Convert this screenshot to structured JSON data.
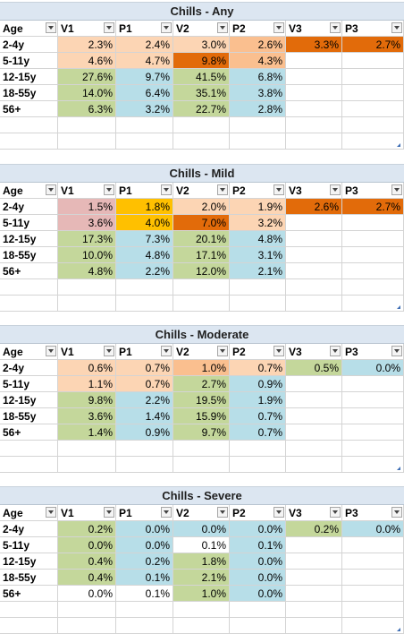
{
  "colors": {
    "peach": "#fcd5b4",
    "light_orange": "#fabf8f",
    "orange": "#e26b0a",
    "dark_orange": "#e46c0a",
    "green": "#c4d79b",
    "blue": "#b7dee8",
    "pink": "#e6b8b7",
    "yellow": "#ffc000",
    "white": "#ffffff",
    "header_bg": "#dce6f1"
  },
  "headers": [
    "Age",
    "V1",
    "P1",
    "V2",
    "P2",
    "V3",
    "P3"
  ],
  "sections": [
    {
      "title": "Chills - Any",
      "rows": [
        {
          "age": "2-4y",
          "values": [
            "2.3%",
            "2.4%",
            "3.0%",
            "2.6%",
            "3.3%",
            "2.7%"
          ],
          "colors": [
            "peach",
            "peach",
            "peach",
            "light_orange",
            "orange",
            "orange"
          ]
        },
        {
          "age": "5-11y",
          "values": [
            "4.6%",
            "4.7%",
            "9.8%",
            "4.3%",
            "",
            ""
          ],
          "colors": [
            "peach",
            "peach",
            "orange",
            "light_orange",
            "white",
            "white"
          ]
        },
        {
          "age": "12-15y",
          "values": [
            "27.6%",
            "9.7%",
            "41.5%",
            "6.8%",
            "",
            ""
          ],
          "colors": [
            "green",
            "blue",
            "green",
            "blue",
            "white",
            "white"
          ]
        },
        {
          "age": "18-55y",
          "values": [
            "14.0%",
            "6.4%",
            "35.1%",
            "3.8%",
            "",
            ""
          ],
          "colors": [
            "green",
            "blue",
            "green",
            "blue",
            "white",
            "white"
          ]
        },
        {
          "age": "56+",
          "values": [
            "6.3%",
            "3.2%",
            "22.7%",
            "2.8%",
            "",
            ""
          ],
          "colors": [
            "green",
            "blue",
            "green",
            "blue",
            "white",
            "white"
          ]
        }
      ]
    },
    {
      "title": "Chills - Mild",
      "rows": [
        {
          "age": "2-4y",
          "values": [
            "1.5%",
            "1.8%",
            "2.0%",
            "1.9%",
            "2.6%",
            "2.7%"
          ],
          "colors": [
            "pink",
            "yellow",
            "peach",
            "peach",
            "orange",
            "orange"
          ]
        },
        {
          "age": "5-11y",
          "values": [
            "3.6%",
            "4.0%",
            "7.0%",
            "3.2%",
            "",
            ""
          ],
          "colors": [
            "pink",
            "yellow",
            "orange",
            "peach",
            "white",
            "white"
          ]
        },
        {
          "age": "12-15y",
          "values": [
            "17.3%",
            "7.3%",
            "20.1%",
            "4.8%",
            "",
            ""
          ],
          "colors": [
            "green",
            "blue",
            "green",
            "blue",
            "white",
            "white"
          ]
        },
        {
          "age": "18-55y",
          "values": [
            "10.0%",
            "4.8%",
            "17.1%",
            "3.1%",
            "",
            ""
          ],
          "colors": [
            "green",
            "blue",
            "green",
            "blue",
            "white",
            "white"
          ]
        },
        {
          "age": "56+",
          "values": [
            "4.8%",
            "2.2%",
            "12.0%",
            "2.1%",
            "",
            ""
          ],
          "colors": [
            "green",
            "blue",
            "green",
            "blue",
            "white",
            "white"
          ]
        }
      ]
    },
    {
      "title": "Chills - Moderate",
      "rows": [
        {
          "age": "2-4y",
          "values": [
            "0.6%",
            "0.7%",
            "1.0%",
            "0.7%",
            "0.5%",
            "0.0%"
          ],
          "colors": [
            "peach",
            "peach",
            "light_orange",
            "peach",
            "green",
            "blue"
          ]
        },
        {
          "age": "5-11y",
          "values": [
            "1.1%",
            "0.7%",
            "2.7%",
            "0.9%",
            "",
            ""
          ],
          "colors": [
            "peach",
            "peach",
            "green",
            "blue",
            "white",
            "white"
          ]
        },
        {
          "age": "12-15y",
          "values": [
            "9.8%",
            "2.2%",
            "19.5%",
            "1.9%",
            "",
            ""
          ],
          "colors": [
            "green",
            "blue",
            "green",
            "blue",
            "white",
            "white"
          ]
        },
        {
          "age": "18-55y",
          "values": [
            "3.6%",
            "1.4%",
            "15.9%",
            "0.7%",
            "",
            ""
          ],
          "colors": [
            "green",
            "blue",
            "green",
            "blue",
            "white",
            "white"
          ]
        },
        {
          "age": "56+",
          "values": [
            "1.4%",
            "0.9%",
            "9.7%",
            "0.7%",
            "",
            ""
          ],
          "colors": [
            "green",
            "blue",
            "green",
            "blue",
            "white",
            "white"
          ]
        }
      ]
    },
    {
      "title": "Chills - Severe",
      "rows": [
        {
          "age": "2-4y",
          "values": [
            "0.2%",
            "0.0%",
            "0.0%",
            "0.0%",
            "0.2%",
            "0.0%"
          ],
          "colors": [
            "green",
            "blue",
            "blue",
            "blue",
            "green",
            "blue"
          ]
        },
        {
          "age": "5-11y",
          "values": [
            "0.0%",
            "0.0%",
            "0.1%",
            "0.1%",
            "",
            ""
          ],
          "colors": [
            "green",
            "blue",
            "white",
            "blue",
            "white",
            "white"
          ]
        },
        {
          "age": "12-15y",
          "values": [
            "0.4%",
            "0.2%",
            "1.8%",
            "0.0%",
            "",
            ""
          ],
          "colors": [
            "green",
            "blue",
            "green",
            "blue",
            "white",
            "white"
          ]
        },
        {
          "age": "18-55y",
          "values": [
            "0.4%",
            "0.1%",
            "2.1%",
            "0.0%",
            "",
            ""
          ],
          "colors": [
            "green",
            "blue",
            "green",
            "blue",
            "white",
            "white"
          ]
        },
        {
          "age": "56+",
          "values": [
            "0.0%",
            "0.1%",
            "1.0%",
            "0.0%",
            "",
            ""
          ],
          "colors": [
            "white",
            "white",
            "green",
            "blue",
            "white",
            "white"
          ]
        }
      ]
    }
  ]
}
